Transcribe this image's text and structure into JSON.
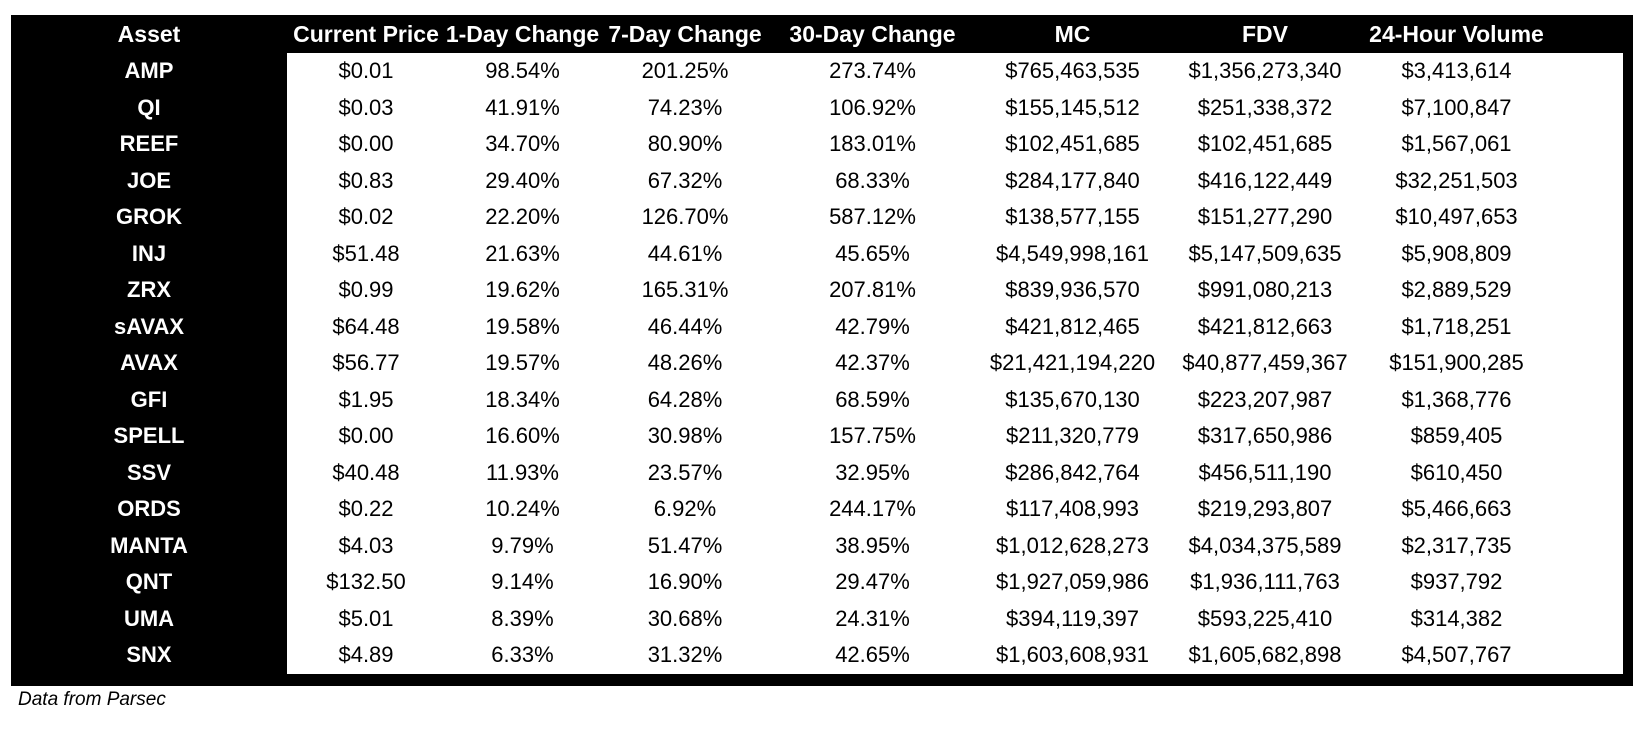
{
  "colors": {
    "table_background": "#000000",
    "header_background": "#000000",
    "header_text": "#ffffff",
    "cell_background": "#ffffff",
    "cell_text": "#000000",
    "asset_text": "#ffffff"
  },
  "footer": {
    "source_note": "Data from Parsec"
  },
  "chart_data": {
    "type": "table",
    "columns": [
      "Asset",
      "Current Price",
      "1-Day Change",
      "7-Day Change",
      "30-Day Change",
      "MC",
      "FDV",
      "24-Hour Volume"
    ],
    "rows": [
      [
        "AMP",
        "$0.01",
        "98.54%",
        "201.25%",
        "273.74%",
        "$765,463,535",
        "$1,356,273,340",
        "$3,413,614"
      ],
      [
        "QI",
        "$0.03",
        "41.91%",
        "74.23%",
        "106.92%",
        "$155,145,512",
        "$251,338,372",
        "$7,100,847"
      ],
      [
        "REEF",
        "$0.00",
        "34.70%",
        "80.90%",
        "183.01%",
        "$102,451,685",
        "$102,451,685",
        "$1,567,061"
      ],
      [
        "JOE",
        "$0.83",
        "29.40%",
        "67.32%",
        "68.33%",
        "$284,177,840",
        "$416,122,449",
        "$32,251,503"
      ],
      [
        "GROK",
        "$0.02",
        "22.20%",
        "126.70%",
        "587.12%",
        "$138,577,155",
        "$151,277,290",
        "$10,497,653"
      ],
      [
        "INJ",
        "$51.48",
        "21.63%",
        "44.61%",
        "45.65%",
        "$4,549,998,161",
        "$5,147,509,635",
        "$5,908,809"
      ],
      [
        "ZRX",
        "$0.99",
        "19.62%",
        "165.31%",
        "207.81%",
        "$839,936,570",
        "$991,080,213",
        "$2,889,529"
      ],
      [
        "sAVAX",
        "$64.48",
        "19.58%",
        "46.44%",
        "42.79%",
        "$421,812,465",
        "$421,812,663",
        "$1,718,251"
      ],
      [
        "AVAX",
        "$56.77",
        "19.57%",
        "48.26%",
        "42.37%",
        "$21,421,194,220",
        "$40,877,459,367",
        "$151,900,285"
      ],
      [
        "GFI",
        "$1.95",
        "18.34%",
        "64.28%",
        "68.59%",
        "$135,670,130",
        "$223,207,987",
        "$1,368,776"
      ],
      [
        "SPELL",
        "$0.00",
        "16.60%",
        "30.98%",
        "157.75%",
        "$211,320,779",
        "$317,650,986",
        "$859,405"
      ],
      [
        "SSV",
        "$40.48",
        "11.93%",
        "23.57%",
        "32.95%",
        "$286,842,764",
        "$456,511,190",
        "$610,450"
      ],
      [
        "ORDS",
        "$0.22",
        "10.24%",
        "6.92%",
        "244.17%",
        "$117,408,993",
        "$219,293,807",
        "$5,466,663"
      ],
      [
        "MANTA",
        "$4.03",
        "9.79%",
        "51.47%",
        "38.95%",
        "$1,012,628,273",
        "$4,034,375,589",
        "$2,317,735"
      ],
      [
        "QNT",
        "$132.50",
        "9.14%",
        "16.90%",
        "29.47%",
        "$1,927,059,986",
        "$1,936,111,763",
        "$937,792"
      ],
      [
        "UMA",
        "$5.01",
        "8.39%",
        "30.68%",
        "24.31%",
        "$394,119,397",
        "$593,225,410",
        "$314,382"
      ],
      [
        "SNX",
        "$4.89",
        "6.33%",
        "31.32%",
        "42.65%",
        "$1,603,608,931",
        "$1,605,682,898",
        "$4,507,767"
      ]
    ]
  }
}
